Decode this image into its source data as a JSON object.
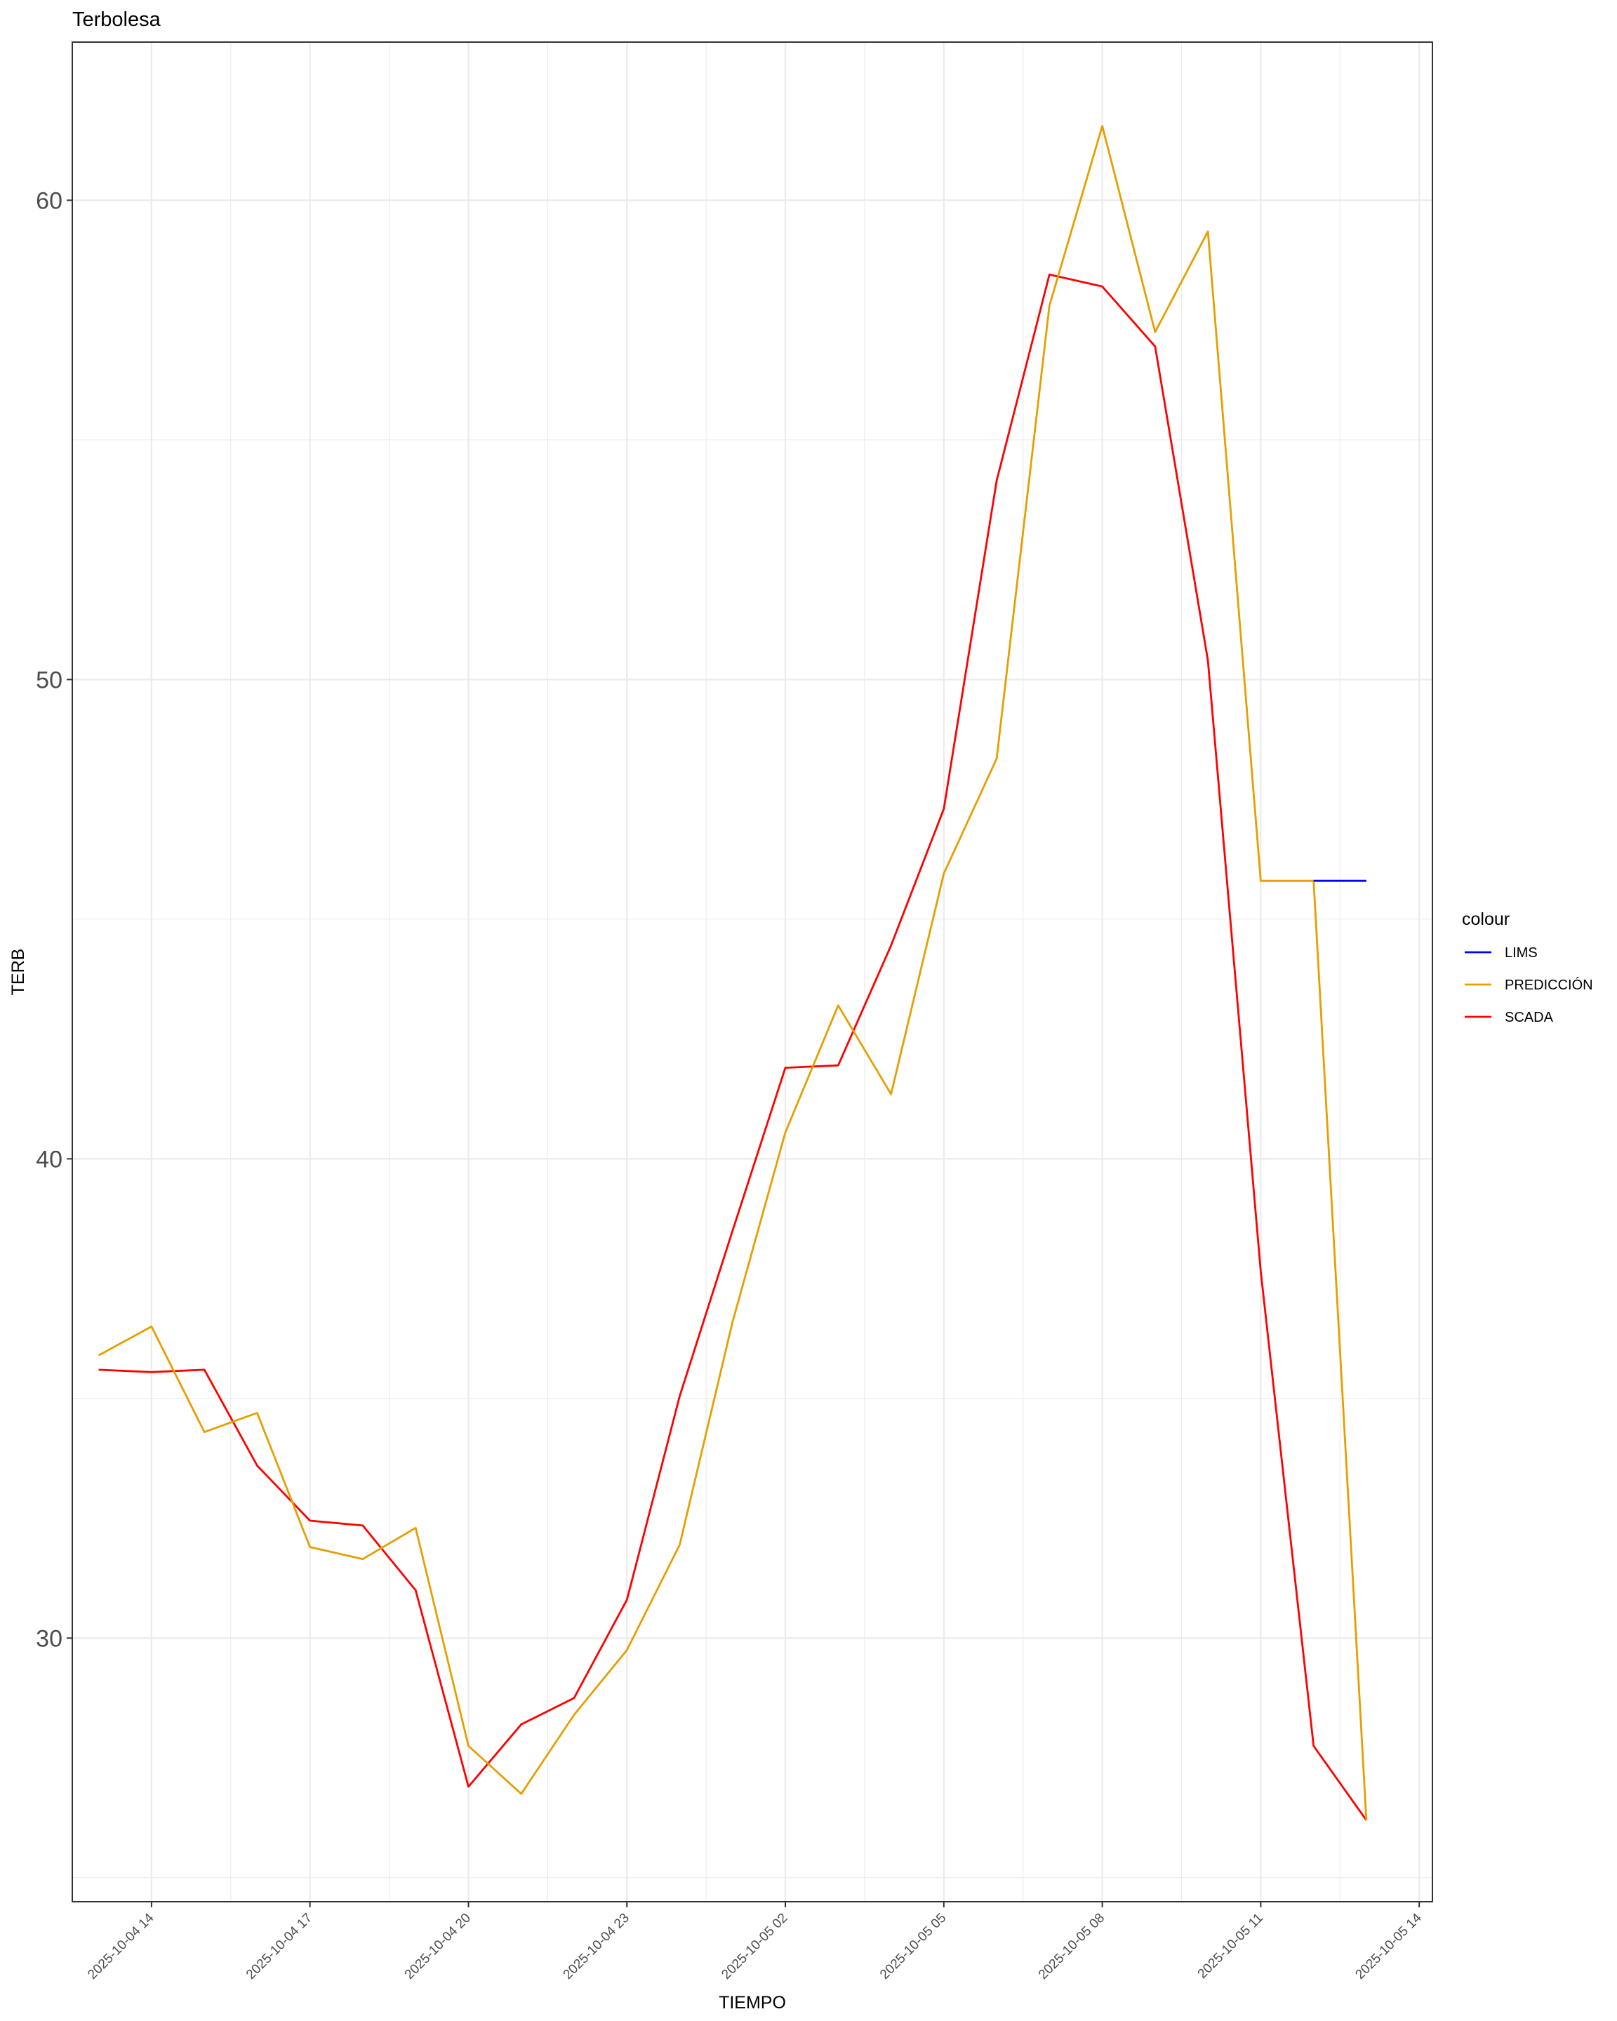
{
  "chart_data": {
    "type": "line",
    "title": "Terbolesa",
    "xlabel": "TIEMPO",
    "ylabel": "TERB",
    "x_ticks": [
      "2025-10-04 14",
      "2025-10-04 17",
      "2025-10-04 20",
      "2025-10-04 23",
      "2025-10-05 02",
      "2025-10-05 05",
      "2025-10-05 08",
      "2025-10-05 11",
      "2025-10-05 14"
    ],
    "y_ticks": [
      30,
      40,
      50,
      60
    ],
    "ylim": [
      24.5,
      63.3
    ],
    "xlim": [
      "2025-10-04 12:30",
      "2025-10-05 14:15"
    ],
    "grid": true,
    "legend": {
      "title": "colour",
      "position": "right",
      "entries": [
        "LIMS",
        "PREDICCIÓN",
        "SCADA"
      ]
    },
    "colors": {
      "LIMS": "#0000ff",
      "PREDICCIÓN": "#e69f00",
      "SCADA": "#ff0000"
    },
    "series": [
      {
        "name": "SCADA",
        "x": [
          "2025-10-04 13:00",
          "2025-10-04 14:00",
          "2025-10-04 15:00",
          "2025-10-04 16:00",
          "2025-10-04 17:00",
          "2025-10-04 18:00",
          "2025-10-04 19:00",
          "2025-10-04 20:00",
          "2025-10-04 21:00",
          "2025-10-04 22:00",
          "2025-10-04 23:00",
          "2025-10-05 00:00",
          "2025-10-05 01:00",
          "2025-10-05 02:00",
          "2025-10-05 03:00",
          "2025-10-05 04:00",
          "2025-10-05 05:00",
          "2025-10-05 06:00",
          "2025-10-05 07:00",
          "2025-10-05 08:00",
          "2025-10-05 09:00",
          "2025-10-05 10:00",
          "2025-10-05 11:00",
          "2025-10-05 12:00",
          "2025-10-05 13:00"
        ],
        "values": [
          35.6,
          35.55,
          35.6,
          33.6,
          32.45,
          32.35,
          31.0,
          26.9,
          28.2,
          28.75,
          30.8,
          35.05,
          38.5,
          41.9,
          41.95,
          44.45,
          47.3,
          54.15,
          58.45,
          58.2,
          56.95,
          50.4,
          37.65,
          27.75,
          26.2
        ]
      },
      {
        "name": "PREDICCIÓN",
        "x": [
          "2025-10-04 13:00",
          "2025-10-04 14:00",
          "2025-10-04 15:00",
          "2025-10-04 16:00",
          "2025-10-04 17:00",
          "2025-10-04 18:00",
          "2025-10-04 19:00",
          "2025-10-04 20:00",
          "2025-10-04 21:00",
          "2025-10-04 22:00",
          "2025-10-04 23:00",
          "2025-10-05 00:00",
          "2025-10-05 01:00",
          "2025-10-05 02:00",
          "2025-10-05 03:00",
          "2025-10-05 04:00",
          "2025-10-05 05:00",
          "2025-10-05 06:00",
          "2025-10-05 07:00",
          "2025-10-05 08:00",
          "2025-10-05 09:00",
          "2025-10-05 10:00",
          "2025-10-05 11:00",
          "2025-10-05 12:00",
          "2025-10-05 13:00"
        ],
        "values": [
          35.9,
          36.5,
          34.3,
          34.7,
          31.9,
          31.65,
          32.3,
          27.75,
          26.75,
          28.4,
          29.75,
          31.95,
          36.6,
          40.55,
          43.2,
          41.35,
          45.95,
          48.35,
          57.8,
          61.55,
          57.25,
          59.35,
          45.8,
          45.8,
          26.2
        ]
      },
      {
        "name": "LIMS",
        "x": [
          "2025-10-05 12:00",
          "2025-10-05 13:00"
        ],
        "values": [
          45.8,
          45.8
        ]
      }
    ]
  }
}
